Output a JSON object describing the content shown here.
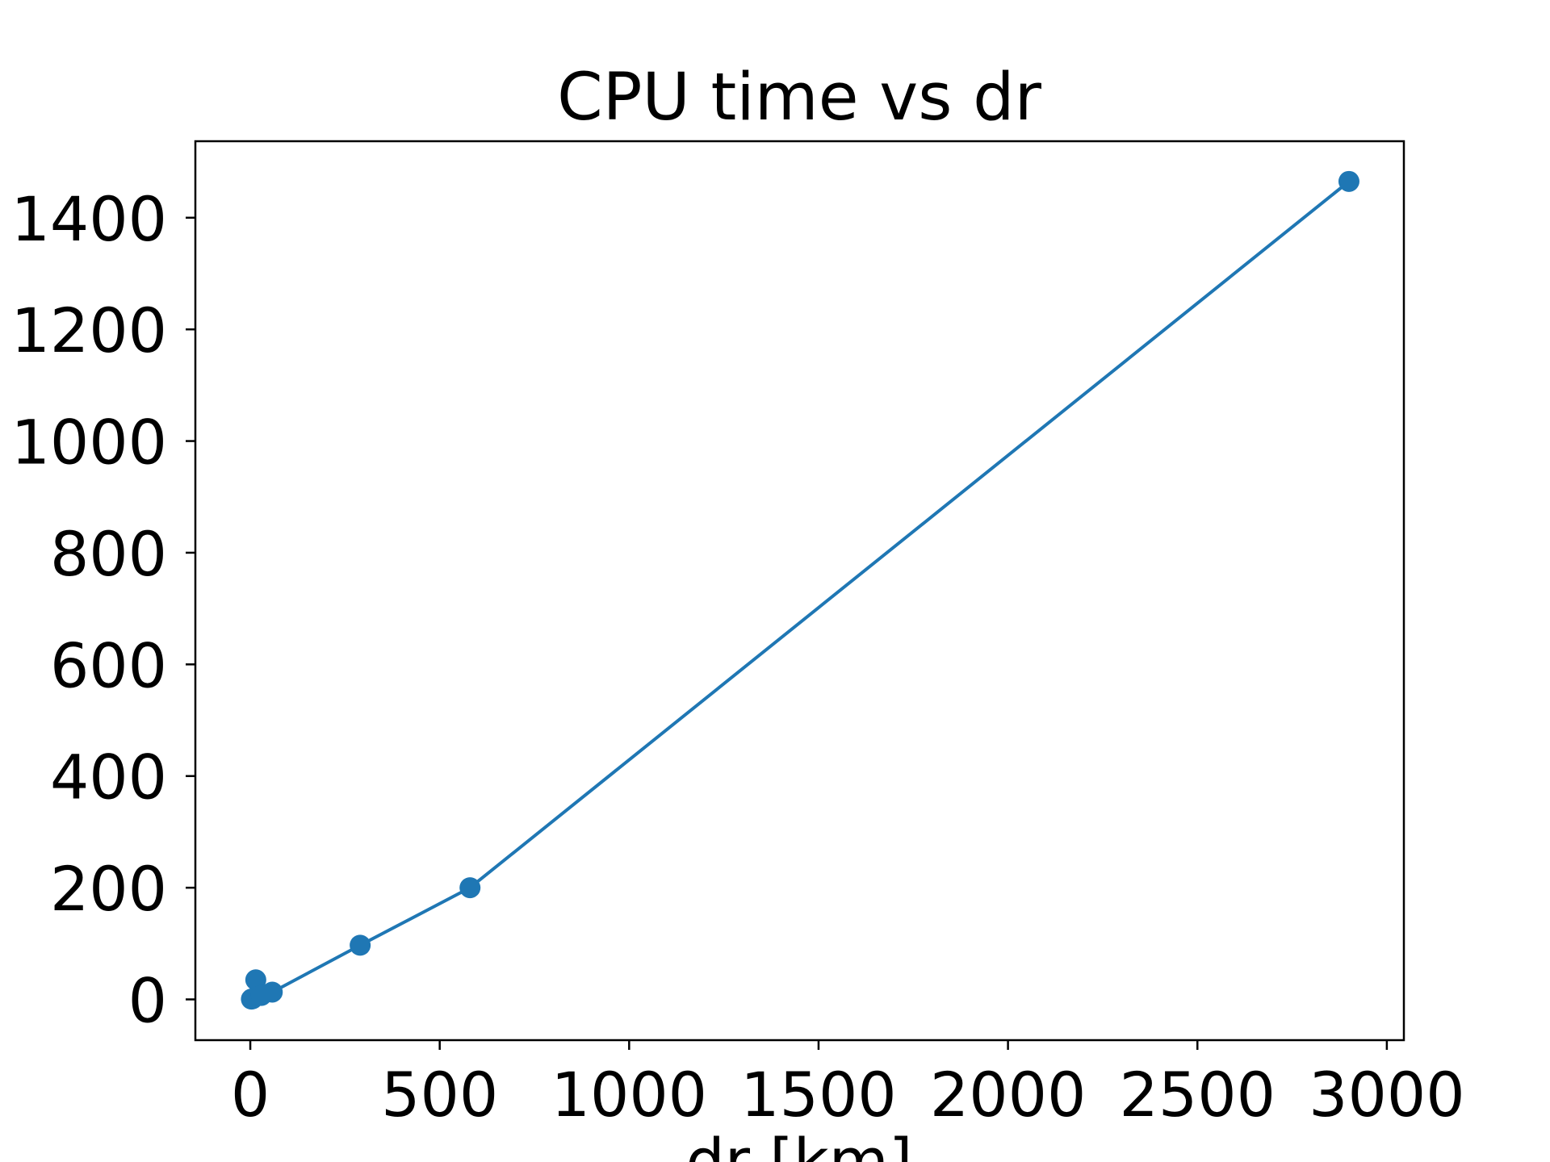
{
  "chart_data": {
    "type": "line",
    "title": "CPU time vs dr",
    "xlabel": "dr [km]",
    "ylabel": "",
    "xlim": [
      -145,
      3045
    ],
    "ylim": [
      -73,
      1537
    ],
    "x_ticks": [
      0,
      500,
      1000,
      1500,
      2000,
      2500,
      3000
    ],
    "y_ticks": [
      0,
      200,
      400,
      600,
      800,
      1000,
      1200,
      1400
    ],
    "x_tick_labels": [
      "0",
      "500",
      "1000",
      "1500",
      "2000",
      "2500",
      "3000"
    ],
    "y_tick_labels": [
      "0",
      "200",
      "400",
      "600",
      "800",
      "1000",
      "1200",
      "1400"
    ],
    "grid": false,
    "marker": "circle",
    "colors": {
      "series": "#1f77b4",
      "axes": "#000000",
      "background": "#ffffff"
    },
    "series": [
      {
        "x": [
          2.9,
          5.8,
          14.5,
          29,
          58,
          290,
          580,
          2900
        ],
        "y": [
          0.5,
          1,
          35,
          7,
          13,
          97,
          200,
          1465
        ]
      }
    ]
  }
}
